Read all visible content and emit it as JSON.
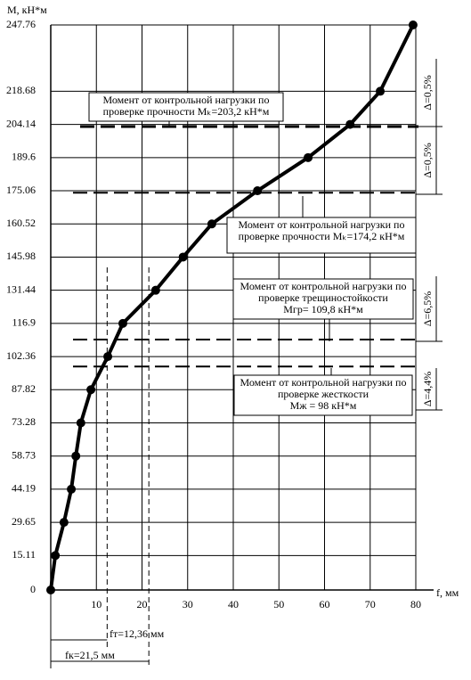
{
  "chart_data": {
    "type": "line",
    "y_label": "М, кН*м",
    "x_label": "f, мм",
    "x": [
      0,
      1,
      2.9,
      4.5,
      5.5,
      6.6,
      8.8,
      12.5,
      15.8,
      23,
      29,
      35.3,
      45.3,
      56.4,
      65.6,
      72.2,
      79.4
    ],
    "series": [
      {
        "color": "#000000",
        "values": [
          0,
          15.11,
          29.65,
          44.19,
          58.73,
          73.28,
          87.82,
          102.36,
          116.9,
          131.44,
          145.98,
          160.52,
          175.06,
          189.6,
          204.14,
          218.68,
          247.76
        ]
      }
    ],
    "xlim": [
      0,
      80
    ],
    "ylim": [
      0,
      247.76
    ],
    "xticks": [
      10,
      20,
      30,
      40,
      50,
      60,
      70,
      80
    ],
    "yticks": [
      0,
      15.11,
      29.65,
      44.19,
      58.73,
      73.28,
      87.82,
      102.36,
      116.9,
      131.44,
      145.98,
      160.52,
      175.06,
      189.6,
      204.14,
      218.68,
      247.76
    ],
    "grid": true,
    "reference_lines": [
      {
        "value": 203.2,
        "label_lines": [
          "Момент от контрольной нагрузки по",
          "проверке прочности Мₖ=203,2 кН*м"
        ]
      },
      {
        "value": 174.2,
        "label_lines": [
          "Момент от контрольной нагрузки по",
          "проверке прочности Мₖ=174,2 кН*м"
        ]
      },
      {
        "value": 109.8,
        "label_lines": [
          "Момент от контрольной нагрузки по",
          "проверке трещиностойкости",
          "Мгр= 109,8 кН*м"
        ]
      },
      {
        "value": 98,
        "label_lines": [
          "Момент от контрольной нагрузки по",
          "проверке жесткости",
          "Мж = 98 кН*м"
        ]
      }
    ],
    "vertical_lines": [
      {
        "value": 12.36,
        "label": "fт=12,36 мм"
      },
      {
        "value": 21.5,
        "label": "fк=21,5 мм"
      }
    ],
    "deltas": [
      "Δ=0,5%",
      "Δ=0,5%",
      "Δ=6,5%",
      "Δ=4,4%"
    ]
  }
}
